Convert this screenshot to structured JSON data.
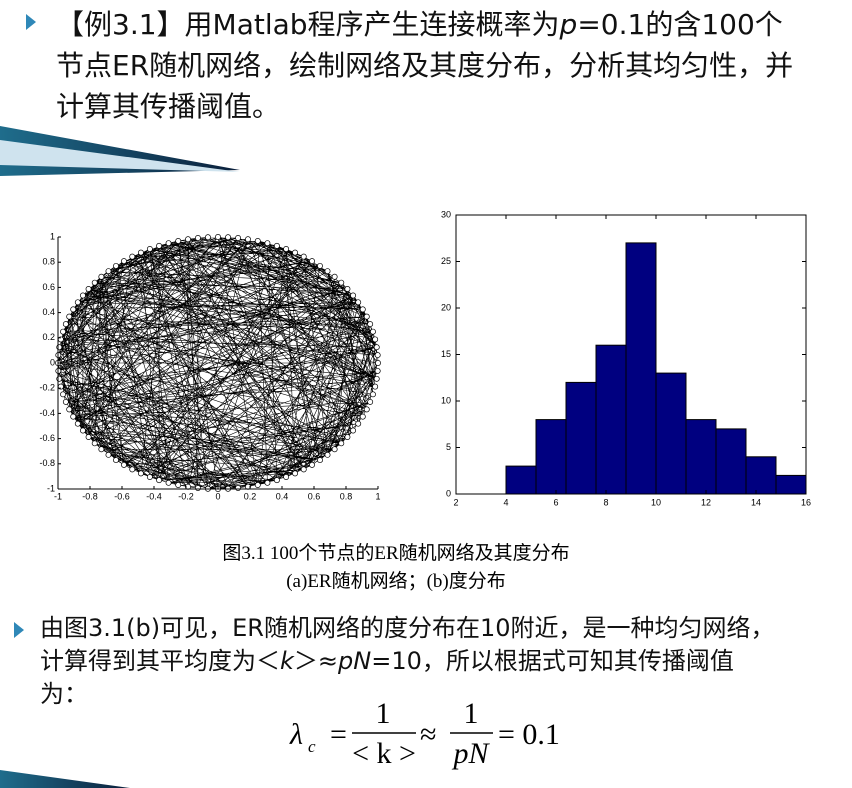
{
  "slide": {
    "title": [
      "【例3.1】用Matlab程序产生连接概率为",
      "p",
      "=0.1的含100个节点ER随机网络，绘制网络及其度分布，分析其均匀性，并计算其传播阈值。"
    ],
    "caption": [
      "图3.1  100个节点的ER随机网络及其度分布",
      "(a)ER随机网络；(b)度分布"
    ],
    "body": [
      "由图3.1(b)可见，ER随机网络的度分布在10附近，是一种均匀网络，计算得到其平均度为＜",
      "k",
      "＞≈",
      "pN",
      "=10，所以根据式可知其传播阈值为："
    ],
    "formula": {
      "symbol": "λ",
      "subscript": "c",
      "eq": "=",
      "num1": "1",
      "den1": "< k >",
      "approx": "≈",
      "num2": "1",
      "den2": "pN",
      "result": "= 0.1"
    }
  },
  "chart_data": [
    {
      "type": "network",
      "xlim": [
        -1,
        1
      ],
      "ylim": [
        -1,
        1
      ],
      "xticks": [
        -1,
        -0.8,
        -0.6,
        -0.4,
        -0.2,
        0,
        0.2,
        0.4,
        0.6,
        0.8,
        1
      ],
      "yticks": [
        -1,
        -0.8,
        -0.6,
        -0.4,
        -0.2,
        0,
        0.2,
        0.4,
        0.6,
        0.8,
        1
      ],
      "color": "#000000"
    },
    {
      "type": "histogram",
      "bins": [
        4,
        5.2,
        6.4,
        7.6,
        8.8,
        10,
        11.2,
        12.4,
        13.6,
        14.8,
        16
      ],
      "values": [
        3,
        8,
        12,
        16,
        27,
        13,
        8,
        7,
        4,
        2
      ],
      "color": "#000080",
      "xlim": [
        2,
        16
      ],
      "ylim": [
        0,
        30
      ],
      "xticks": [
        2,
        4,
        6,
        8,
        10,
        12,
        14,
        16
      ],
      "yticks": [
        0,
        5,
        10,
        15,
        20,
        25,
        30
      ]
    }
  ]
}
